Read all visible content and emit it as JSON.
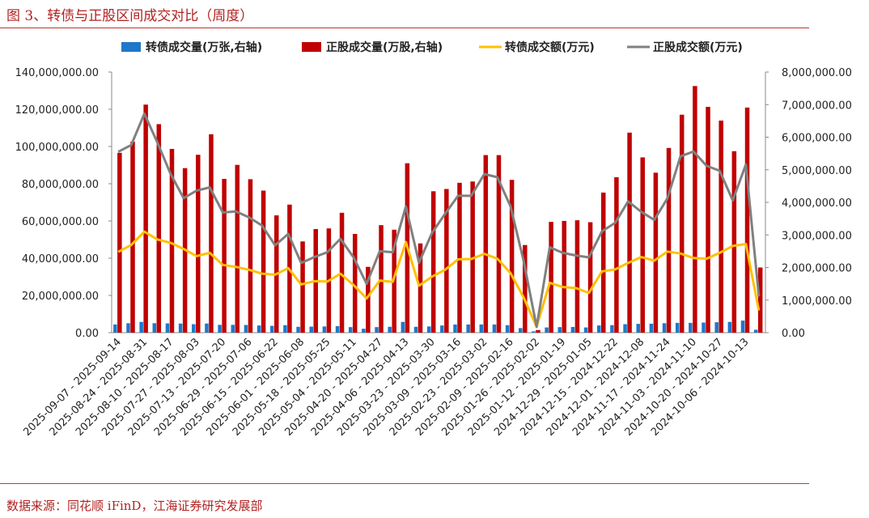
{
  "figure_title": "图 3、转债与正股区间成交对比（周度）",
  "source": "数据来源：同花顺 iFinD，江海证券研究发展部",
  "colors": {
    "cb_volume": "#1f77c8",
    "stock_volume": "#c00000",
    "cb_amount": "#ffc000",
    "stock_amount": "#808080",
    "accent": "#c0392b"
  },
  "chart_data": {
    "type": "bar",
    "title": "",
    "xlabel": "",
    "ylabel": "",
    "categories": [
      "2025-09-07 - 2025-09-14",
      "2025-08-31",
      "2025-08-24 - 2025-08-31",
      "2025-08-24",
      "2025-08-10 - 2025-08-17",
      "2025-08-10",
      "2025-07-27 - 2025-08-03",
      "2025-07-27",
      "2025-07-13 - 2025-07-20",
      "2025-07-13",
      "2025-06-29 - 2025-07-06",
      "2025-06-29",
      "2025-06-15 - 2025-06-22",
      "2025-06-15",
      "2025-06-01 - 2025-06-08",
      "2025-06-01",
      "2025-05-18 - 2025-05-25",
      "2025-05-18",
      "2025-05-04 - 2025-05-11",
      "2025-05-04",
      "2025-04-20 - 2025-04-27",
      "2025-04-20",
      "2025-04-06 - 2025-04-13",
      "2025-04-06",
      "2025-03-23 - 2025-03-30",
      "2025-03-23",
      "2025-03-09 - 2025-03-16",
      "2025-03-09",
      "2025-02-23 - 2025-03-02",
      "2025-02-23",
      "2025-02-09 - 2025-02-16",
      "2025-02-09",
      "2025-01-26 - 2025-02-02",
      "2025-01-26",
      "2025-01-12 - 2025-01-19",
      "2025-01-12",
      "2024-12-29 - 2025-01-05",
      "2024-12-29",
      "2024-12-15 - 2024-12-22",
      "2024-12-15",
      "2024-12-01 - 2024-12-08",
      "2024-12-01",
      "2024-11-17 - 2024-11-24",
      "2024-11-17",
      "2024-11-03 - 2024-11-10",
      "2024-11-03",
      "2024-10-20 - 2024-10-27",
      "2024-10-20",
      "2024-10-06 - 2024-10-13",
      "2024-10-06"
    ],
    "x_tick_labels": [
      "2025-09-07 - 2025-09-14",
      "2025-08-24 - 2025-08-31",
      "2025-08-10 - 2025-08-17",
      "2025-07-27 - 2025-08-03",
      "2025-07-13 - 2025-07-20",
      "2025-06-29 - 2025-07-06",
      "2025-06-15 - 2025-06-22",
      "2025-06-01 - 2025-06-08",
      "2025-05-18 - 2025-05-25",
      "2025-05-04 - 2025-05-11",
      "2025-04-20 - 2025-04-27",
      "2025-04-06 - 2025-04-13",
      "2025-03-23 - 2025-03-30",
      "2025-03-09 - 2025-03-16",
      "2025-02-23 - 2025-03-02",
      "2025-02-09 - 2025-02-16",
      "2025-01-26 - 2025-02-02",
      "2025-01-12 - 2025-01-19",
      "2024-12-29 - 2025-01-05",
      "2024-12-15 - 2024-12-22",
      "2024-12-01 - 2024-12-08",
      "2024-11-17 - 2024-11-24",
      "2024-11-03 - 2024-11-10",
      "2024-10-20 - 2024-10-27",
      "2024-10-06 - 2024-10-13"
    ],
    "y_left": {
      "ylim": [
        0,
        140000000
      ],
      "ticks": [
        "0.00",
        "20,000,000.00",
        "40,000,000.00",
        "60,000,000.00",
        "80,000,000.00",
        "100,000,000.00",
        "120,000,000.00",
        "140,000,000.00"
      ]
    },
    "y_right": {
      "ylim": [
        0,
        8000000
      ],
      "ticks": [
        "0.00",
        "1,000,000.00",
        "2,000,000.00",
        "3,000,000.00",
        "4,000,000.00",
        "5,000,000.00",
        "6,000,000.00",
        "7,000,000.00",
        "8,000,000.00"
      ]
    },
    "legend_position": "top",
    "grid": false,
    "series": [
      {
        "name": "转债成交量(万张,右轴)",
        "type": "bar",
        "axis": "right",
        "values": [
          250000,
          290000,
          330000,
          290000,
          285000,
          280000,
          260000,
          280000,
          240000,
          240000,
          235000,
          220000,
          210000,
          230000,
          180000,
          185000,
          190000,
          200000,
          170000,
          120000,
          170000,
          180000,
          330000,
          180000,
          190000,
          220000,
          250000,
          250000,
          250000,
          250000,
          230000,
          140000,
          40000,
          160000,
          170000,
          175000,
          160000,
          220000,
          230000,
          260000,
          270000,
          275000,
          290000,
          300000,
          300000,
          310000,
          320000,
          330000,
          370000,
          90000
        ]
      },
      {
        "name": "正股成交量(万股,右轴)",
        "type": "bar",
        "axis": "right",
        "values": [
          5520000,
          5860000,
          7000000,
          6400000,
          5640000,
          5050000,
          5460000,
          6090000,
          4720000,
          5150000,
          4710000,
          4360000,
          3600000,
          3930000,
          2800000,
          3180000,
          3200000,
          3680000,
          3030000,
          2020000,
          3300000,
          3160000,
          5200000,
          2740000,
          4340000,
          4410000,
          4600000,
          4640000,
          5450000,
          5450000,
          4690000,
          2690000,
          80000,
          3400000,
          3430000,
          3450000,
          3390000,
          4300000,
          4770000,
          6140000,
          5380000,
          4910000,
          5670000,
          6690000,
          7570000,
          6930000,
          6510000,
          5570000,
          6910000,
          2000000
        ]
      },
      {
        "name": "转债成交额(万元)",
        "type": "line",
        "axis": "right",
        "values": [
          2480000,
          2690000,
          3100000,
          2860000,
          2760000,
          2570000,
          2350000,
          2450000,
          2080000,
          2020000,
          1930000,
          1810000,
          1780000,
          1980000,
          1480000,
          1580000,
          1570000,
          1810000,
          1460000,
          1050000,
          1600000,
          1560000,
          2780000,
          1440000,
          1720000,
          1930000,
          2250000,
          2260000,
          2420000,
          2270000,
          1830000,
          1090000,
          180000,
          1530000,
          1400000,
          1370000,
          1220000,
          1880000,
          1940000,
          2140000,
          2320000,
          2210000,
          2490000,
          2430000,
          2290000,
          2270000,
          2450000,
          2660000,
          2720000,
          680000
        ]
      },
      {
        "name": "正股成交额(万元)",
        "type": "line",
        "axis": "right",
        "values": [
          5550000,
          5760000,
          6720000,
          5830000,
          4880000,
          4130000,
          4360000,
          4460000,
          3690000,
          3720000,
          3540000,
          3290000,
          2680000,
          3030000,
          2140000,
          2320000,
          2470000,
          2880000,
          2310000,
          1500000,
          2500000,
          2470000,
          3870000,
          2150000,
          3060000,
          3650000,
          4200000,
          4200000,
          4870000,
          4770000,
          3880000,
          2220000,
          180000,
          2620000,
          2450000,
          2370000,
          2310000,
          3110000,
          3370000,
          4030000,
          3710000,
          3460000,
          4120000,
          5410000,
          5560000,
          5120000,
          4970000,
          4060000,
          5160000,
          1110000
        ]
      }
    ]
  }
}
